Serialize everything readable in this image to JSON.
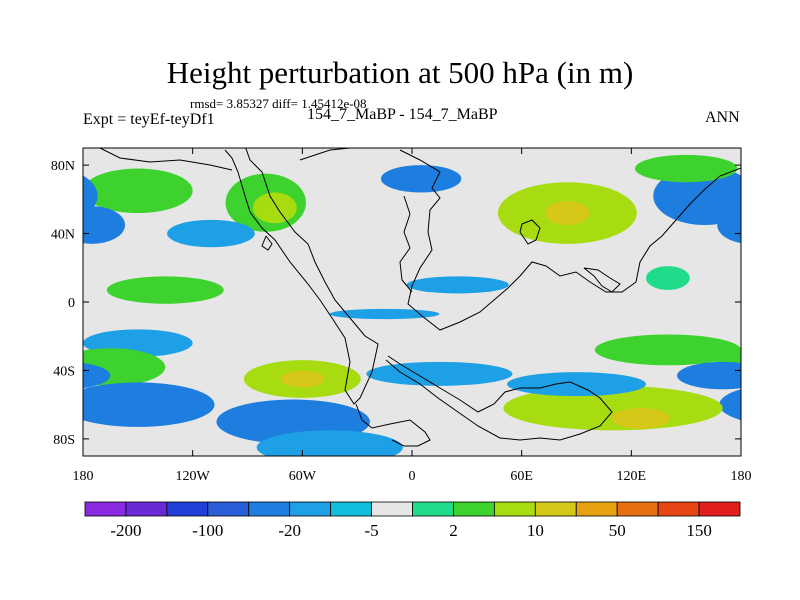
{
  "chart_data": {
    "type": "heatmap",
    "title": "Height perturbation at 500 hPa (in m)",
    "stats_line": "rmsd= 3.85327 diff= 1.45412e-08",
    "left_label": "Expt = teyEf-teyDf1",
    "center_label": "154_7_MaBP - 154_7_MaBP",
    "right_label": "ANN",
    "xlabel": "",
    "ylabel": "",
    "xlim": [
      -180,
      180
    ],
    "ylim": [
      -90,
      90
    ],
    "x_ticks": [
      {
        "value": -180,
        "label": "180"
      },
      {
        "value": -120,
        "label": "120W"
      },
      {
        "value": -60,
        "label": "60W"
      },
      {
        "value": 0,
        "label": "0"
      },
      {
        "value": 60,
        "label": "60E"
      },
      {
        "value": 120,
        "label": "120E"
      },
      {
        "value": 180,
        "label": "180"
      }
    ],
    "y_ticks": [
      {
        "value": 80,
        "label": "80N"
      },
      {
        "value": 40,
        "label": "40N"
      },
      {
        "value": 0,
        "label": "0"
      },
      {
        "value": -40,
        "label": "40S"
      },
      {
        "value": -80,
        "label": "80S"
      }
    ],
    "colorbar": {
      "colors": [
        "#8a2be2",
        "#6a2bd6",
        "#2040d8",
        "#2a5ed8",
        "#1e7ee0",
        "#1ea0e6",
        "#10bedc",
        "#e6e6e6",
        "#20dc8a",
        "#3ed22e",
        "#a6dc10",
        "#d6c818",
        "#e6a010",
        "#e66e10",
        "#e64614",
        "#e01e1e"
      ],
      "labels": [
        "-200",
        "-100",
        "-20",
        "-5",
        "2",
        "10",
        "50",
        "150"
      ],
      "label_slots": [
        1,
        3,
        5,
        7,
        9,
        11,
        13,
        15
      ]
    },
    "fields": [
      {
        "lon": -150,
        "lat": 65,
        "sx": 30,
        "sy": 13,
        "value": 10
      },
      {
        "lon": -80,
        "lat": 58,
        "sx": 22,
        "sy": 17,
        "value": 10
      },
      {
        "lon": -75,
        "lat": 55,
        "sx": 12,
        "sy": 9,
        "value": 20
      },
      {
        "lon": 5,
        "lat": 72,
        "sx": 22,
        "sy": 8,
        "value": -10
      },
      {
        "lon": 85,
        "lat": 52,
        "sx": 38,
        "sy": 18,
        "value": 20
      },
      {
        "lon": 85,
        "lat": 52,
        "sx": 12,
        "sy": 7,
        "value": 40
      },
      {
        "lon": 160,
        "lat": 62,
        "sx": 28,
        "sy": 17,
        "value": -15
      },
      {
        "lon": 150,
        "lat": 78,
        "sx": 28,
        "sy": 8,
        "value": 10
      },
      {
        "lon": -175,
        "lat": 45,
        "sx": 18,
        "sy": 11,
        "value": -15
      },
      {
        "lon": -110,
        "lat": 40,
        "sx": 24,
        "sy": 8,
        "value": -8
      },
      {
        "lon": -135,
        "lat": 7,
        "sx": 32,
        "sy": 8,
        "value": 8
      },
      {
        "lon": 25,
        "lat": 10,
        "sx": 28,
        "sy": 5,
        "value": -6
      },
      {
        "lon": -15,
        "lat": -7,
        "sx": 30,
        "sy": 3,
        "value": -5
      },
      {
        "lon": 140,
        "lat": 14,
        "sx": 12,
        "sy": 7,
        "value": 4
      },
      {
        "lon": -150,
        "lat": -24,
        "sx": 30,
        "sy": 8,
        "value": -7
      },
      {
        "lon": -60,
        "lat": -45,
        "sx": 32,
        "sy": 11,
        "value": 12
      },
      {
        "lon": -60,
        "lat": -45,
        "sx": 12,
        "sy": 5,
        "value": 25
      },
      {
        "lon": -165,
        "lat": -38,
        "sx": 30,
        "sy": 11,
        "value": 6
      },
      {
        "lon": -150,
        "lat": -60,
        "sx": 42,
        "sy": 13,
        "value": -15
      },
      {
        "lon": -65,
        "lat": -70,
        "sx": 42,
        "sy": 13,
        "value": -10
      },
      {
        "lon": -45,
        "lat": -85,
        "sx": 40,
        "sy": 10,
        "value": -8
      },
      {
        "lon": 15,
        "lat": -42,
        "sx": 40,
        "sy": 7,
        "value": -8
      },
      {
        "lon": 110,
        "lat": -62,
        "sx": 60,
        "sy": 13,
        "value": 15
      },
      {
        "lon": 125,
        "lat": -68,
        "sx": 16,
        "sy": 6,
        "value": 30
      },
      {
        "lon": 140,
        "lat": -28,
        "sx": 40,
        "sy": 9,
        "value": 10
      },
      {
        "lon": 90,
        "lat": -48,
        "sx": 38,
        "sy": 7,
        "value": -6
      },
      {
        "lon": 170,
        "lat": -43,
        "sx": 25,
        "sy": 8,
        "value": -10
      }
    ]
  }
}
